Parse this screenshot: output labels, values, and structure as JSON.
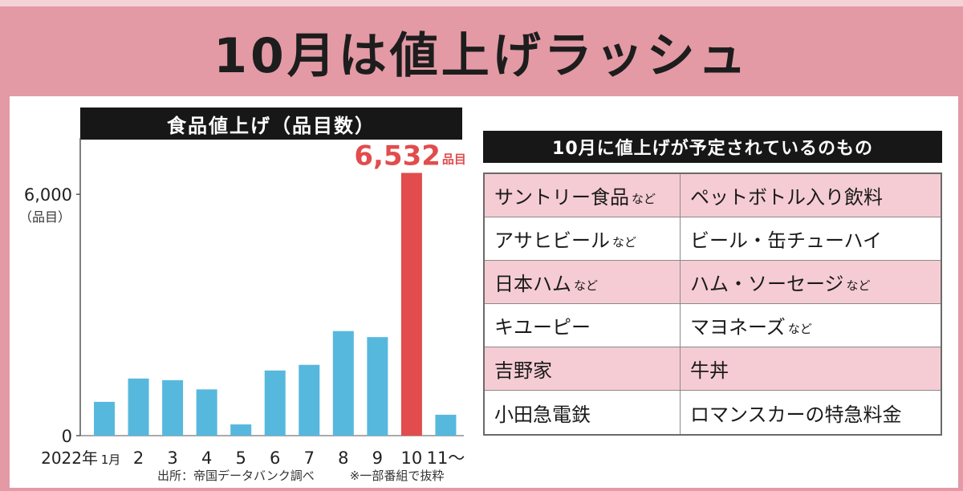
{
  "title": "10月は値上げラッシュ",
  "chart_data": {
    "type": "bar",
    "title": "食品値上げ（品目数）",
    "ylabel": "（品目）",
    "first_category_year": "2022年",
    "categories": [
      "1月",
      "2",
      "3",
      "4",
      "5",
      "6",
      "7",
      "8",
      "9",
      "10",
      "11〜"
    ],
    "values": [
      840,
      1420,
      1380,
      1150,
      280,
      1620,
      1760,
      2600,
      2450,
      6532,
      520
    ],
    "highlight_index": 9,
    "highlight_label": "6,532",
    "highlight_unit": "品目",
    "y_ticks": [
      {
        "value": 0,
        "label": "0"
      },
      {
        "value": 6000,
        "label": "6,000"
      }
    ],
    "ylim": [
      0,
      7400
    ],
    "colors": {
      "bar": "#57b8de",
      "highlight": "#e24c4c"
    },
    "grid": false
  },
  "source": {
    "citation": "出所：帝国データバンク調べ",
    "note": "※一部番組で抜粋"
  },
  "table": {
    "header": "10月に値上げが予定されているのもの",
    "rows": [
      {
        "company": "サントリー食品",
        "company_suffix": "など",
        "item": "ペットボトル入り飲料",
        "item_suffix": ""
      },
      {
        "company": "アサヒビール",
        "company_suffix": "など",
        "item": "ビール・缶チューハイ",
        "item_suffix": ""
      },
      {
        "company": "日本ハム",
        "company_suffix": "など",
        "item": "ハム・ソーセージ",
        "item_suffix": "など"
      },
      {
        "company": "キユーピー",
        "company_suffix": "",
        "item": "マヨネーズ",
        "item_suffix": "など"
      },
      {
        "company": "吉野家",
        "company_suffix": "",
        "item": "牛丼",
        "item_suffix": ""
      },
      {
        "company": "小田急電鉄",
        "company_suffix": "",
        "item": "ロマンスカーの特急料金",
        "item_suffix": ""
      }
    ]
  }
}
